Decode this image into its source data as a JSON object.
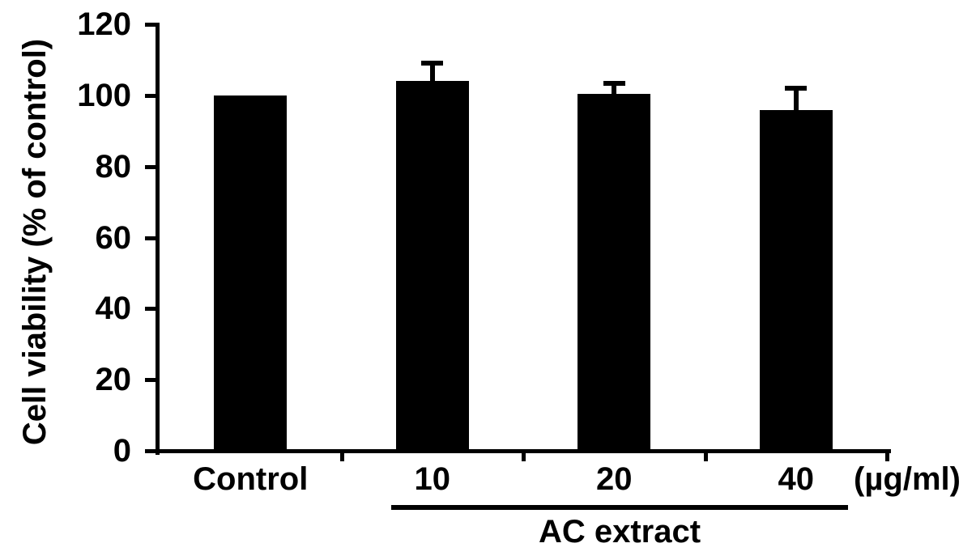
{
  "chart_data": {
    "type": "bar",
    "title": "",
    "ylabel": "Cell viability (% of control)",
    "xlabel": "",
    "x_unit_label": "(µg/ml)",
    "group_label": "AC extract",
    "group_span_categories": [
      "10",
      "20",
      "40"
    ],
    "categories": [
      "Control",
      "10",
      "20",
      "40"
    ],
    "values": [
      100,
      104,
      100.5,
      96
    ],
    "errors_plus": [
      0,
      5,
      3,
      6
    ],
    "ylim": [
      0,
      120
    ],
    "yticks": [
      0,
      20,
      40,
      60,
      80,
      100,
      120
    ],
    "grid": false,
    "legend_position": "none",
    "bar_color": "#000000",
    "axis_color": "#000000",
    "text_color": "#000000",
    "background_color": "#ffffff"
  }
}
